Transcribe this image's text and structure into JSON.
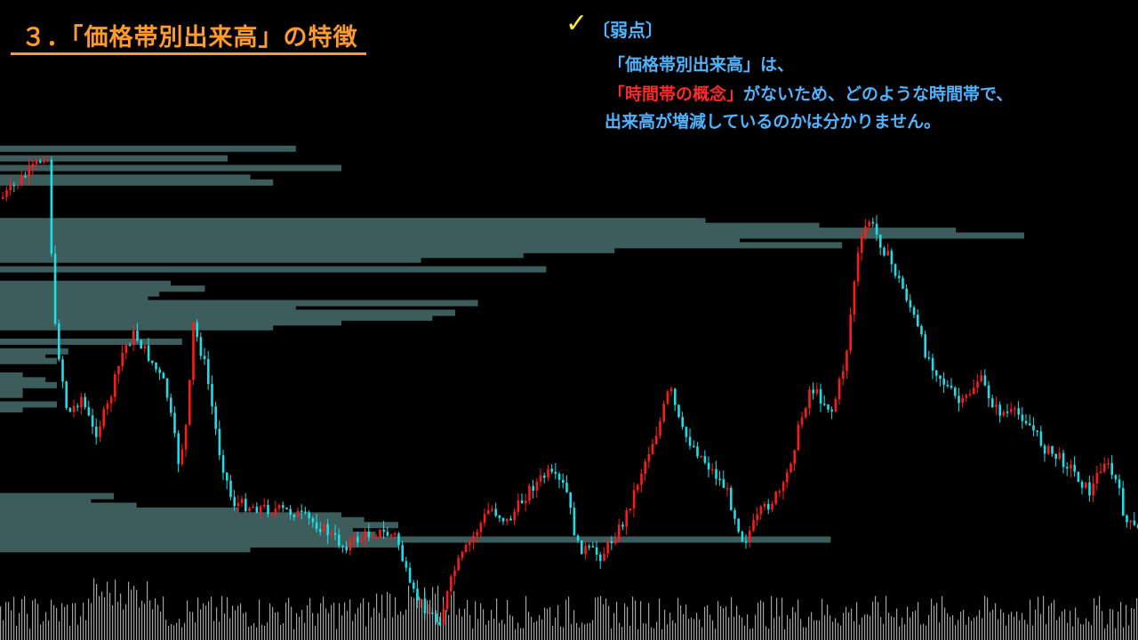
{
  "heading": {
    "title": "３．「価格帯別出来高」の特徴",
    "color": "#ff9a2e"
  },
  "note": {
    "check_icon": "✓",
    "label": "〔弱点〕",
    "line1": "「価格帯別出来高」は、",
    "line2_red": "「時間帯の概念」",
    "line2_rest": "がないため、どのような時間帯で、",
    "line3": "出来高が増減しているのかは分かりません。",
    "text_color": "#4fb3ff",
    "emphasis_color": "#ff2a2a"
  },
  "chart_data": {
    "type": "candlestick",
    "colors": {
      "up": "#ff1a1a",
      "down": "#19e0e8",
      "volume_profile": "#3d5c5c",
      "volume": "#d8d8d8"
    },
    "price_path": [
      [
        0,
        0.19
      ],
      [
        40,
        0.12
      ],
      [
        52,
        0.09
      ],
      [
        60,
        0.45
      ],
      [
        75,
        0.64
      ],
      [
        90,
        0.6
      ],
      [
        105,
        0.68
      ],
      [
        120,
        0.62
      ],
      [
        138,
        0.5
      ],
      [
        150,
        0.47
      ],
      [
        170,
        0.53
      ],
      [
        185,
        0.58
      ],
      [
        200,
        0.74
      ],
      [
        210,
        0.64
      ],
      [
        216,
        0.45
      ],
      [
        230,
        0.54
      ],
      [
        245,
        0.71
      ],
      [
        260,
        0.82
      ],
      [
        290,
        0.83
      ],
      [
        330,
        0.84
      ],
      [
        360,
        0.87
      ],
      [
        385,
        0.91
      ],
      [
        420,
        0.88
      ],
      [
        445,
        0.89
      ],
      [
        460,
        1.0
      ],
      [
        478,
        1.04
      ],
      [
        492,
        1.07
      ],
      [
        510,
        0.96
      ],
      [
        528,
        0.9
      ],
      [
        550,
        0.83
      ],
      [
        570,
        0.86
      ],
      [
        595,
        0.79
      ],
      [
        615,
        0.76
      ],
      [
        635,
        0.79
      ],
      [
        648,
        0.91
      ],
      [
        675,
        0.93
      ],
      [
        700,
        0.86
      ],
      [
        725,
        0.73
      ],
      [
        740,
        0.66
      ],
      [
        752,
        0.58
      ],
      [
        765,
        0.67
      ],
      [
        790,
        0.73
      ],
      [
        815,
        0.79
      ],
      [
        835,
        0.9
      ],
      [
        855,
        0.84
      ],
      [
        880,
        0.79
      ],
      [
        895,
        0.68
      ],
      [
        910,
        0.58
      ],
      [
        935,
        0.63
      ],
      [
        950,
        0.52
      ],
      [
        962,
        0.32
      ],
      [
        975,
        0.23
      ],
      [
        1000,
        0.32
      ],
      [
        1020,
        0.4
      ],
      [
        1040,
        0.51
      ],
      [
        1060,
        0.57
      ],
      [
        1080,
        0.62
      ],
      [
        1100,
        0.56
      ],
      [
        1120,
        0.63
      ],
      [
        1150,
        0.64
      ],
      [
        1175,
        0.71
      ],
      [
        1200,
        0.74
      ],
      [
        1225,
        0.8
      ],
      [
        1240,
        0.73
      ],
      [
        1255,
        0.78
      ],
      [
        1265,
        0.86
      ],
      [
        1280,
        0.88
      ]
    ],
    "volume_profile_levels": [
      [
        0.08,
        0.26
      ],
      [
        0.1,
        0.2
      ],
      [
        0.12,
        0.3
      ],
      [
        0.14,
        0.22
      ],
      [
        0.15,
        0.24
      ],
      [
        0.23,
        0.62
      ],
      [
        0.24,
        0.72
      ],
      [
        0.25,
        0.84
      ],
      [
        0.26,
        0.9
      ],
      [
        0.27,
        0.65
      ],
      [
        0.28,
        0.74
      ],
      [
        0.29,
        0.54
      ],
      [
        0.3,
        0.46
      ],
      [
        0.31,
        0.37
      ],
      [
        0.33,
        0.48
      ],
      [
        0.36,
        0.15
      ],
      [
        0.37,
        0.18
      ],
      [
        0.38,
        0.14
      ],
      [
        0.39,
        0.13
      ],
      [
        0.4,
        0.42
      ],
      [
        0.41,
        0.26
      ],
      [
        0.42,
        0.4
      ],
      [
        0.43,
        0.38
      ],
      [
        0.44,
        0.3
      ],
      [
        0.45,
        0.24
      ],
      [
        0.48,
        0.16
      ],
      [
        0.5,
        0.06
      ],
      [
        0.51,
        0.04
      ],
      [
        0.52,
        0.05
      ],
      [
        0.55,
        0.02
      ],
      [
        0.56,
        0.04
      ],
      [
        0.57,
        0.05
      ],
      [
        0.58,
        0.02
      ],
      [
        0.59,
        0.02
      ],
      [
        0.61,
        0.05
      ],
      [
        0.62,
        0.02
      ],
      [
        0.8,
        0.1
      ],
      [
        0.81,
        0.08
      ],
      [
        0.82,
        0.12
      ],
      [
        0.83,
        0.21
      ],
      [
        0.84,
        0.3
      ],
      [
        0.85,
        0.32
      ],
      [
        0.86,
        0.35
      ],
      [
        0.87,
        0.31
      ],
      [
        0.88,
        0.33
      ],
      [
        0.89,
        0.73
      ],
      [
        0.9,
        0.35
      ],
      [
        0.91,
        0.22
      ]
    ]
  }
}
